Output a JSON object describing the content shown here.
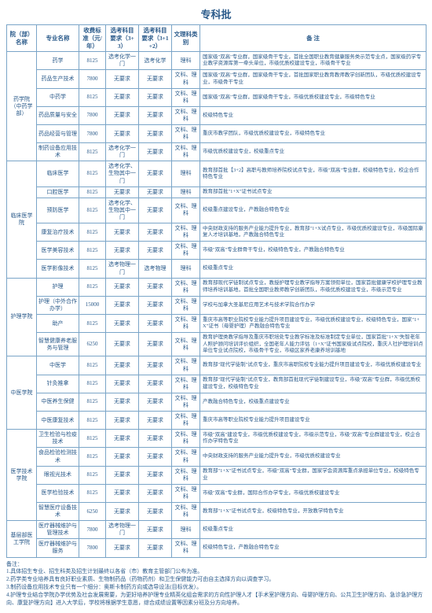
{
  "title": "专科批",
  "headers": {
    "c0": "院（部）名称",
    "c1": "专业名称",
    "c2": "收费标准（元/年）",
    "c3": "选考科目要求（3+3）",
    "c4": "选考科目要求（3+1+2）",
    "c5": "文理科类别",
    "c6": "备 注"
  },
  "depts": [
    {
      "name": "药学院（中药学部）",
      "rows": [
        {
          "major": "药学",
          "fee": "8125",
          "r33": "选考化学一门",
          "r312": "选考化学",
          "cat": "理科",
          "note": "国家级\"双高\"专业群，国家级骨干专业，首批全国职业教育健康服务类示范专业点，国家级药学专业教学资源库第一牵头单位，市级优质校建设专业，市级骨干专业"
        },
        {
          "major": "药品生产技术",
          "fee": "7800",
          "r33": "无要求",
          "r312": "无要求",
          "cat": "文科、理科",
          "note": "国家级\"双高\"专业群，国家级骨干专业，首批国家职业教育教师教学创新团队，市级优质校建设专业，市级骨干专业"
        },
        {
          "major": "中药学",
          "fee": "8125",
          "r33": "无要求",
          "r312": "无要求",
          "cat": "文科、理科",
          "note": "国家级\"双高\"专业群，国家级骨干专业，市级优质校建设专业，市级特色专业"
        },
        {
          "major": "药品质量与安全",
          "fee": "7800",
          "r33": "无要求",
          "r312": "无要求",
          "cat": "文科、理科",
          "note": "校级特色专业"
        },
        {
          "major": "药品经营与管理",
          "fee": "7800",
          "r33": "无要求",
          "r312": "无要求",
          "cat": "文科、理科",
          "note": "重庆市教学团队，市级优质校建设专业，市级特色专业"
        },
        {
          "major": "制药设备应用技术",
          "fee": "8125",
          "r33": "选考化学一门",
          "r312": "无要求",
          "cat": "文科、理科",
          "note": "市级优质校建设专业，校级重点专业"
        }
      ]
    },
    {
      "name": "临床医学院",
      "rows": [
        {
          "major": "临床医学",
          "fee": "8125",
          "r33": "选考化学、生物其中一门",
          "r312": "无要求",
          "cat": "理科",
          "note": "教育部首批【3+2】高职与教师培养院校试点专业，市级\"双高\"专业群，校级特色专业，校企合作特色专业"
        },
        {
          "major": "口腔医学",
          "fee": "8125",
          "r33": "无要求",
          "r312": "无要求",
          "cat": "理科",
          "note": "教育部首批\"1+X\"证书试点专业"
        },
        {
          "major": "预防医学",
          "fee": "8125",
          "r33": "选考化学、生物其中一门",
          "r312": "无要求",
          "cat": "文科、理科",
          "note": "校级重点建设专业，产教融合特色专业"
        },
        {
          "major": "康复治疗技术",
          "fee": "8125",
          "r33": "无要求",
          "r312": "无要求",
          "cat": "文科、理科",
          "note": "中央财政支持的服务产业能力提升专业，教育部\"1+X试点专业，市级优质校建设专业，市级国际康复人才培训基地，产教融合特色专业"
        },
        {
          "major": "医学美容技术",
          "fee": "8125",
          "r33": "无要求",
          "r312": "无要求",
          "cat": "文科、理科",
          "note": "市级\"双高\"专业群骨干专业，校级特色专业，产教融合特色专业"
        },
        {
          "major": "医学影像技术",
          "fee": "8125",
          "r33": "选考物理一门",
          "r312": "选考物理",
          "cat": "理科",
          "note": "校级重点专业"
        }
      ]
    },
    {
      "name": "护理学院",
      "rows": [
        {
          "major": "护理",
          "fee": "8125",
          "r33": "无要求",
          "r312": "无要求",
          "cat": "文科、理科",
          "note": "教育部现代学徒制试点专业，教授护理专业教学指导方案领衔单位，国家首批健康学校护理专业教师培养培训基地，首批全国职业教师教学创新团队，市级优质校建设专业，市级示范专业"
        },
        {
          "major": "护理（中外合作办学）",
          "fee": "15000",
          "r33": "无要求",
          "r312": "无要求",
          "cat": "文科、理科",
          "note": "学校与加拿大圣基尼应用艺术与技术学院合作办学"
        },
        {
          "major": "助产",
          "fee": "8125",
          "r33": "无要求",
          "r312": "无要求",
          "cat": "文科、理科",
          "note": "重庆市高等职业院校专业能力提升项目建设专业，市级优质校建设专业，校级特色专业，国家\"1+X\"证书（母婴护理）产教融合特色专业"
        },
        {
          "major": "智慧健康养老服务与管理",
          "fee": "6250",
          "r33": "无要求",
          "r312": "无要求",
          "cat": "文科、理科",
          "note": "教育护理类教学指导及重庆市职培处专业教学标准及标准制定专业单位，国家首批\"1+X\"失智老年人照护顾问培训评价组织，全国老年人能力评估（1+X\"证书国家级试点院校，重庆人社护理培训点单位专业试点院校，市级骨干专业，市级区家养老康养培训基地"
        }
      ]
    },
    {
      "name": "中医学院",
      "rows": [
        {
          "major": "中医学",
          "fee": "8125",
          "r33": "无要求",
          "r312": "无要求",
          "cat": "文科、理科",
          "note": "教育部\"现代学徒制\"试点专业，重庆市高职院校专业能力提升项目建设专业，市级优质校建设专业"
        },
        {
          "major": "针灸推拿",
          "fee": "8125",
          "r33": "无要求",
          "r312": "无要求",
          "cat": "文科、理科",
          "note": "教育部\"现代学徒制\"试点专业，教育部首批现代学徒制建设专业，市级\"双高\"专业群，市级优质校建设专业，校级特色专业"
        },
        {
          "major": "中医养生保健",
          "fee": "8125",
          "r33": "无要求",
          "r312": "无要求",
          "cat": "文科、理科",
          "note": "产教融合特色专业，校级重点建设专业"
        },
        {
          "major": "中医康复技术",
          "fee": "8125",
          "r33": "无要求",
          "r312": "无要求",
          "cat": "文科、理科",
          "note": "重庆市高等职业院校专业能力提升项目建设专业"
        }
      ]
    },
    {
      "name": "医学技术学院",
      "rows": [
        {
          "major": "卫生检验与检疫技术",
          "fee": "8125",
          "r33": "无要求",
          "r312": "无要求",
          "cat": "文科、理科",
          "note": "市级\"双高\"建设专业，市级优质校建设专业，市级示范专业，市级\"双高\"专业群建设专业，校企合作办学特色专业"
        },
        {
          "major": "食品检验检测技术",
          "fee": "8125",
          "r33": "无要求",
          "r312": "无要求",
          "cat": "文科、理科",
          "note": "中央财政支持的服务产业能力提升专业，市级优质校建设专业"
        },
        {
          "major": "眼视光技术",
          "fee": "8125",
          "r33": "无要求",
          "r312": "无要求",
          "cat": "文科、理科",
          "note": "教育部\"1+X\"证书试点专业，市级\"双高\"专业群，国家学会资源库重点承担单位专业，校级特色专业"
        },
        {
          "major": "医学检验技术",
          "fee": "8125",
          "r33": "无要求",
          "r312": "无要求",
          "cat": "文科、理科",
          "note": "市级\"双高\"专业群，国际合作办学专业，市级优质校建设专业"
        },
        {
          "major": "智慧医疗设备技术",
          "fee": "6250",
          "r33": "无要求",
          "r312": "无要求",
          "cat": "文科、理科",
          "note": "教育部\"1+X\"证书试点专业，校级特色专业，开放教学特色专业"
        }
      ]
    },
    {
      "name": "基层部医工学院",
      "rows": [
        {
          "major": "医疗器械维护与管理技术",
          "fee": "7800",
          "r33": "选考物理一门",
          "r312": "无要求",
          "cat": "理科",
          "note": "校级重点专业"
        },
        {
          "major": "医疗器械维护与服务",
          "fee": "7800",
          "r33": "无要求",
          "r312": "无要求",
          "cat": "文科、理科",
          "note": "校级特色专业，产教融合特色专业"
        }
      ]
    }
  ],
  "notes": {
    "t": "备注：",
    "n1": "1.具体招生专业、招生科类及招生计划最终以各省（市）教育主管部门公布为准。",
    "n2": "2.药学类专业培养具有良好职业素质、生物制药品（药物药剂）和卫生保健能力可由自主选择方向以调查学习。",
    "n3": "3.制药设备应用技术专业只有一个细分：奥斯卡制药方向或选导设法(目标优发）。",
    "n4": "4.护理专业结合学院办学优势及社会发展需要，为更好培养护理专业精英化组会需求的方向性护理人才【手术室护理方向、母婴护理方向、公共卫生护理方向、急诊急护理方向、康复护理方向】进入大学后，学校将根据学生意愿，综合成绩设置等因素分班及分方向培养。"
  },
  "widths": {
    "c0": 38,
    "c1": 54,
    "c2": 34,
    "c3": 42,
    "c4": 42,
    "c5": 36,
    "c6": 288
  }
}
